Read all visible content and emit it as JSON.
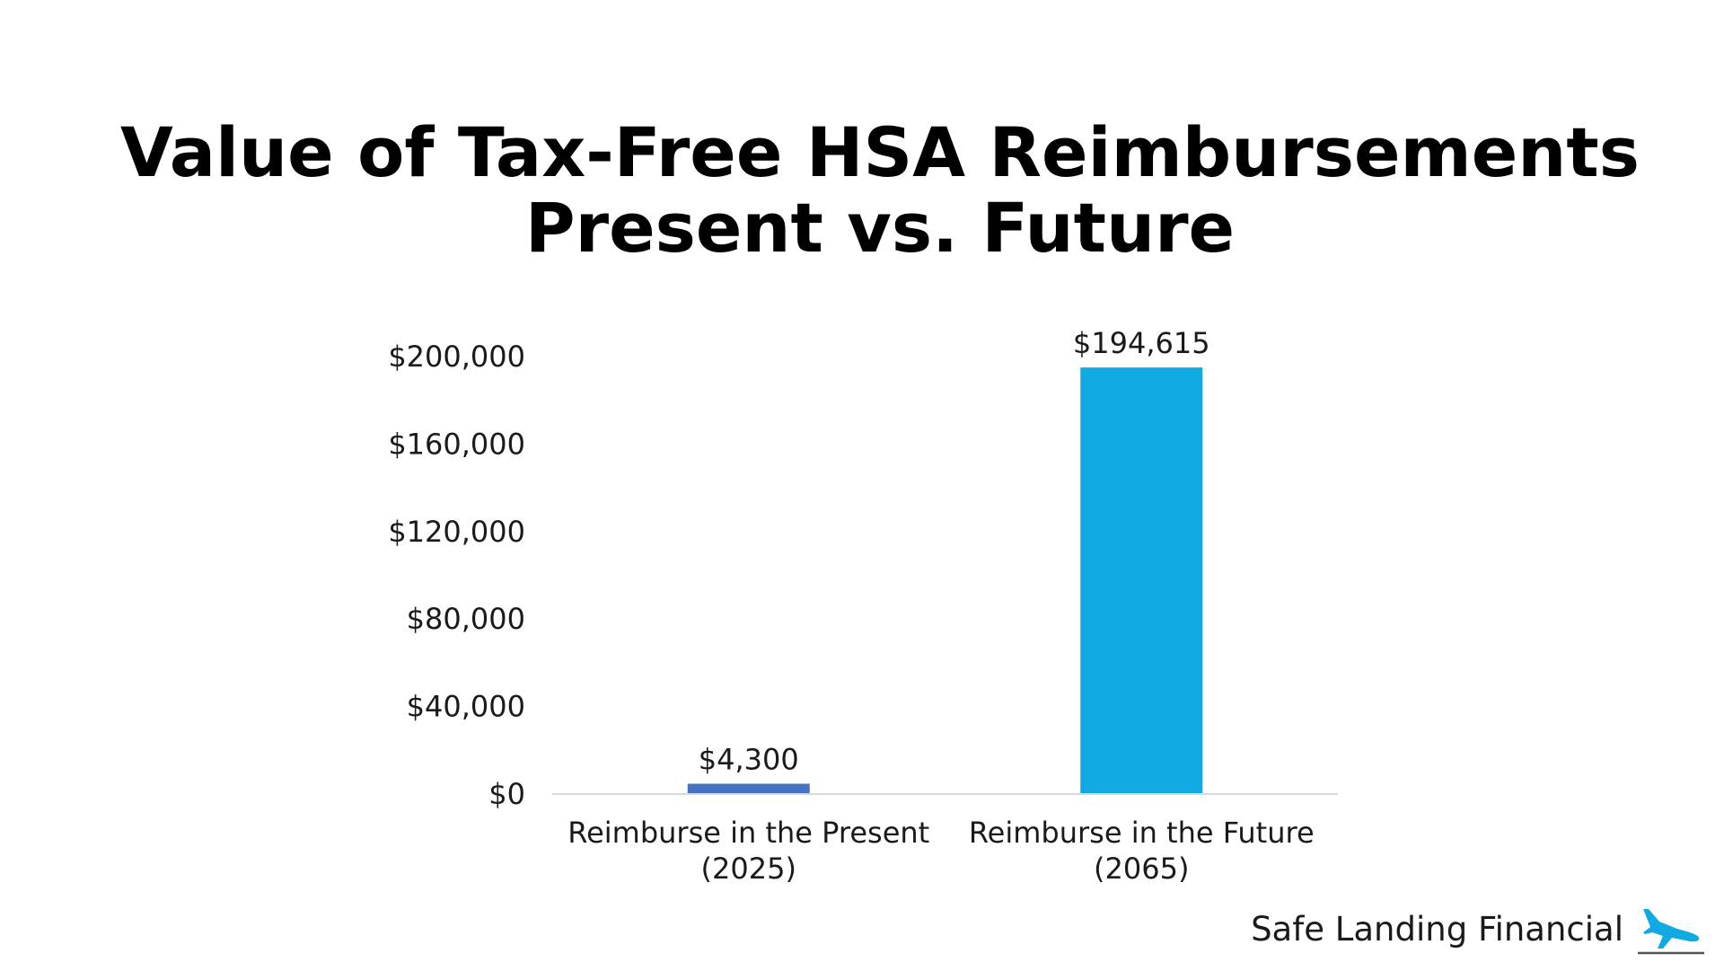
{
  "title": {
    "line1": "Value of Tax-Free HSA Reimbursements",
    "line2": "Present vs. Future"
  },
  "chart_data": {
    "type": "bar",
    "title": "Value of Tax-Free HSA Reimbursements Present vs. Future",
    "categories": [
      [
        "Reimburse in the Present",
        "(2025)"
      ],
      [
        "Reimburse in the Future",
        "(2065)"
      ]
    ],
    "values": [
      4300,
      194615
    ],
    "data_labels": [
      "$4,300",
      "$194,615"
    ],
    "colors": [
      "#4472C4",
      "#11A9E2"
    ],
    "ylim": [
      0,
      200000
    ],
    "yticks": [
      0,
      40000,
      80000,
      120000,
      160000,
      200000
    ],
    "ytick_labels": [
      "$0",
      "$40,000",
      "$80,000",
      "$120,000",
      "$160,000",
      "$200,000"
    ],
    "xlabel": "",
    "ylabel": "",
    "grid": false,
    "legend": "none"
  },
  "footer": {
    "brand": "Safe Landing Financial",
    "icon": "landing-airplane-icon",
    "icon_color": "#11A9E2"
  }
}
